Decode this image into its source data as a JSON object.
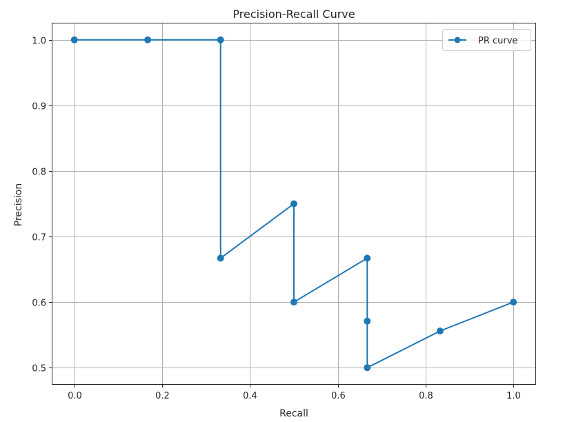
{
  "chart_data": {
    "type": "line",
    "title": "Precision-Recall Curve",
    "xlabel": "Recall",
    "ylabel": "Precision",
    "xlim": [
      -0.05,
      1.05
    ],
    "ylim": [
      0.475,
      1.025
    ],
    "xticks": [
      0.0,
      0.2,
      0.4,
      0.6,
      0.8,
      1.0
    ],
    "xtick_labels": [
      "0.0",
      "0.2",
      "0.4",
      "0.6",
      "0.8",
      "1.0"
    ],
    "yticks": [
      0.5,
      0.6,
      0.7,
      0.8,
      0.9,
      1.0
    ],
    "ytick_labels": [
      "0.5",
      "0.6",
      "0.7",
      "0.8",
      "0.9",
      "1.0"
    ],
    "grid": true,
    "legend_position": "top-right",
    "series": [
      {
        "name": "PR curve",
        "color": "#1f77b4",
        "marker": "circle",
        "x": [
          0.0,
          0.167,
          0.333,
          0.333,
          0.5,
          0.5,
          0.667,
          0.667,
          0.667,
          0.833,
          1.0
        ],
        "y": [
          1.0,
          1.0,
          1.0,
          0.667,
          0.75,
          0.6,
          0.667,
          0.571,
          0.5,
          0.556,
          0.6
        ]
      }
    ]
  }
}
